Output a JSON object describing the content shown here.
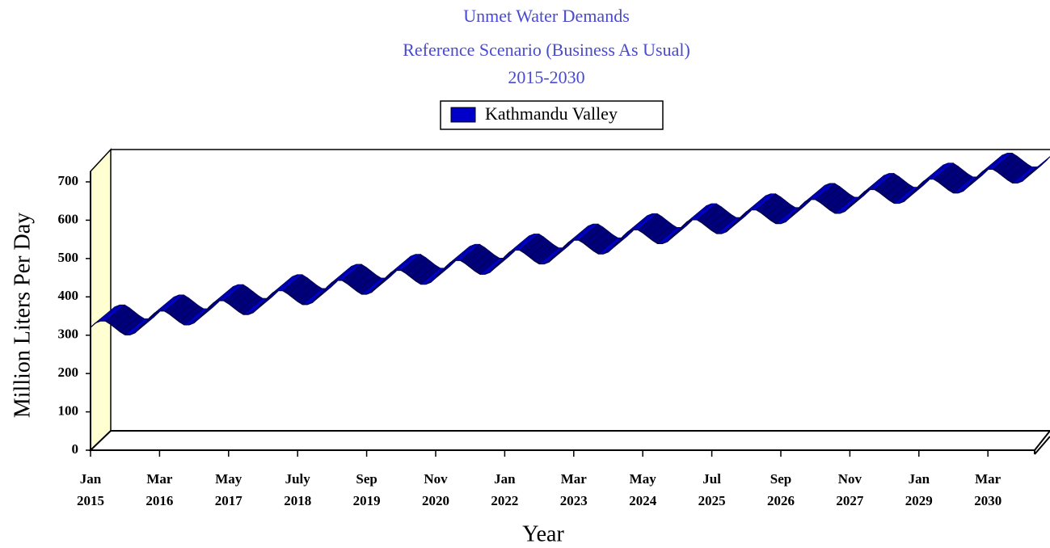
{
  "chart_data": {
    "type": "ribbon-line",
    "title_lines": [
      "Unmet Water Demands",
      "Reference Scenario (Business As Usual)",
      "2015-2030"
    ],
    "xlabel": "Year",
    "ylabel": "Million Liters Per Day",
    "ylim": [
      0,
      700
    ],
    "yticks": [
      0,
      100,
      200,
      300,
      400,
      500,
      600,
      700
    ],
    "categories": [
      "Jan 2015",
      null,
      null,
      null,
      null,
      null,
      null,
      null,
      null,
      null,
      null,
      null,
      null,
      null,
      "Mar 2016",
      null,
      null,
      null,
      null,
      null,
      null,
      null,
      null,
      null,
      null,
      null,
      null,
      null,
      "May 2017",
      null,
      null,
      null,
      null,
      null,
      null,
      null,
      null,
      null,
      null,
      null,
      null,
      null,
      "July 2018",
      null,
      null,
      null,
      null,
      null,
      null,
      null,
      null,
      null,
      null,
      null,
      null,
      null,
      "Sep 2019",
      null,
      null,
      null,
      null,
      null,
      null,
      null,
      null,
      null,
      null,
      null,
      null,
      null,
      "Nov 2020",
      null,
      null,
      null,
      null,
      null,
      null,
      null,
      null,
      null,
      null,
      null,
      null,
      null,
      "Jan 2022",
      null,
      null,
      null,
      null,
      null,
      null,
      null,
      null,
      null,
      null,
      null,
      null,
      null,
      "Mar 2023",
      null,
      null,
      null,
      null,
      null,
      null,
      null,
      null,
      null,
      null,
      null,
      null,
      null,
      "May 2024",
      null,
      null,
      null,
      null,
      null,
      null,
      null,
      null,
      null,
      null,
      null,
      null,
      null,
      "Jul 2025",
      null,
      null,
      null,
      null,
      null,
      null,
      null,
      null,
      null,
      null,
      null,
      null,
      null,
      "Sep 2026",
      null,
      null,
      null,
      null,
      null,
      null,
      null,
      null,
      null,
      null,
      null,
      null,
      null,
      "Nov 2027",
      null,
      null,
      null,
      null,
      null,
      null,
      null,
      null,
      null,
      null,
      null,
      null,
      null,
      "Jan 2029",
      null,
      null,
      null,
      null,
      null,
      null,
      null,
      null,
      null,
      null,
      null,
      null,
      null,
      "Mar 2030",
      null,
      null,
      null,
      null,
      null,
      null,
      null,
      null,
      null
    ],
    "series": [
      {
        "name": "Kathmandu Valley",
        "color": "#0000c8",
        "values": [
          320,
          332,
          337,
          337,
          329,
          319,
          309,
          301,
          301,
          306,
          318,
          332,
          346,
          358,
          363,
          363,
          355,
          345,
          335,
          327,
          327,
          332,
          344,
          358,
          373,
          385,
          390,
          390,
          382,
          372,
          362,
          354,
          354,
          359,
          371,
          385,
          399,
          411,
          416,
          416,
          408,
          398,
          388,
          380,
          380,
          385,
          397,
          411,
          426,
          438,
          443,
          443,
          435,
          425,
          415,
          407,
          407,
          412,
          424,
          438,
          452,
          464,
          469,
          469,
          461,
          451,
          441,
          433,
          433,
          438,
          450,
          464,
          478,
          490,
          495,
          495,
          487,
          477,
          467,
          459,
          459,
          464,
          476,
          490,
          505,
          517,
          522,
          522,
          514,
          504,
          494,
          486,
          486,
          491,
          503,
          517,
          531,
          543,
          548,
          548,
          540,
          530,
          520,
          512,
          512,
          517,
          529,
          543,
          558,
          570,
          575,
          575,
          567,
          557,
          547,
          539,
          539,
          544,
          556,
          570,
          584,
          596,
          601,
          601,
          593,
          583,
          573,
          565,
          565,
          570,
          582,
          596,
          610,
          622,
          627,
          627,
          619,
          609,
          599,
          591,
          591,
          596,
          608,
          622,
          637,
          649,
          654,
          654,
          646,
          636,
          626,
          618,
          618,
          623,
          635,
          649,
          663,
          675,
          680,
          680,
          672,
          662,
          652,
          644,
          644,
          649,
          661,
          675,
          690,
          702,
          707,
          707,
          699,
          689,
          679,
          671,
          671,
          676,
          688,
          702,
          716,
          728,
          733,
          733,
          725,
          715,
          705,
          697,
          697,
          702,
          714,
          728
        ]
      }
    ]
  }
}
